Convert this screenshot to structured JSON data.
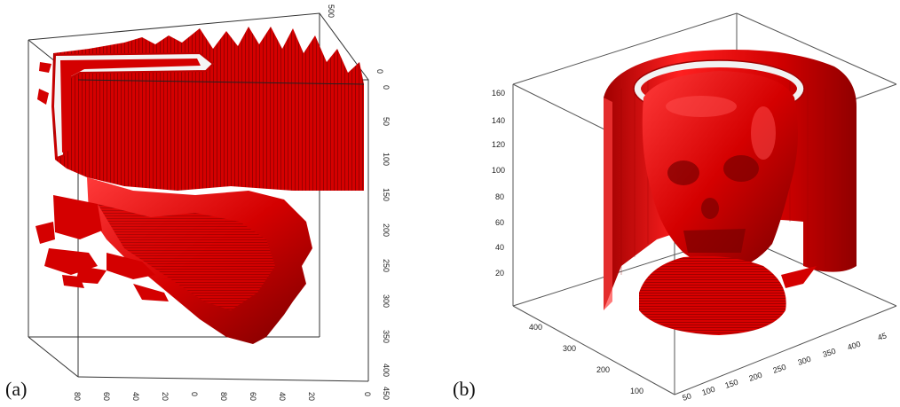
{
  "panels": [
    {
      "label": "(a)",
      "axis_labels": {
        "right": [
          "0",
          "50",
          "100",
          "150",
          "200",
          "250",
          "300",
          "350",
          "400",
          "450"
        ],
        "top": [
          "0",
          "500"
        ],
        "bottom": [
          "80",
          "60",
          "40",
          "20",
          "0",
          "80",
          "60",
          "40",
          "20",
          "0"
        ]
      }
    },
    {
      "label": "(b)",
      "axis_labels": {
        "vertical": [
          "160",
          "140",
          "120",
          "100",
          "80",
          "60",
          "40",
          "20"
        ],
        "left_depth": [
          "400",
          "300",
          "200",
          "100"
        ],
        "front_bottom": [
          "50",
          "100",
          "150",
          "200",
          "250",
          "300",
          "350",
          "400",
          "45"
        ]
      }
    }
  ],
  "colors": {
    "surface": "#d40000",
    "surface_dark": "#8a0000",
    "surface_light": "#ff3030",
    "box": "#333333"
  }
}
